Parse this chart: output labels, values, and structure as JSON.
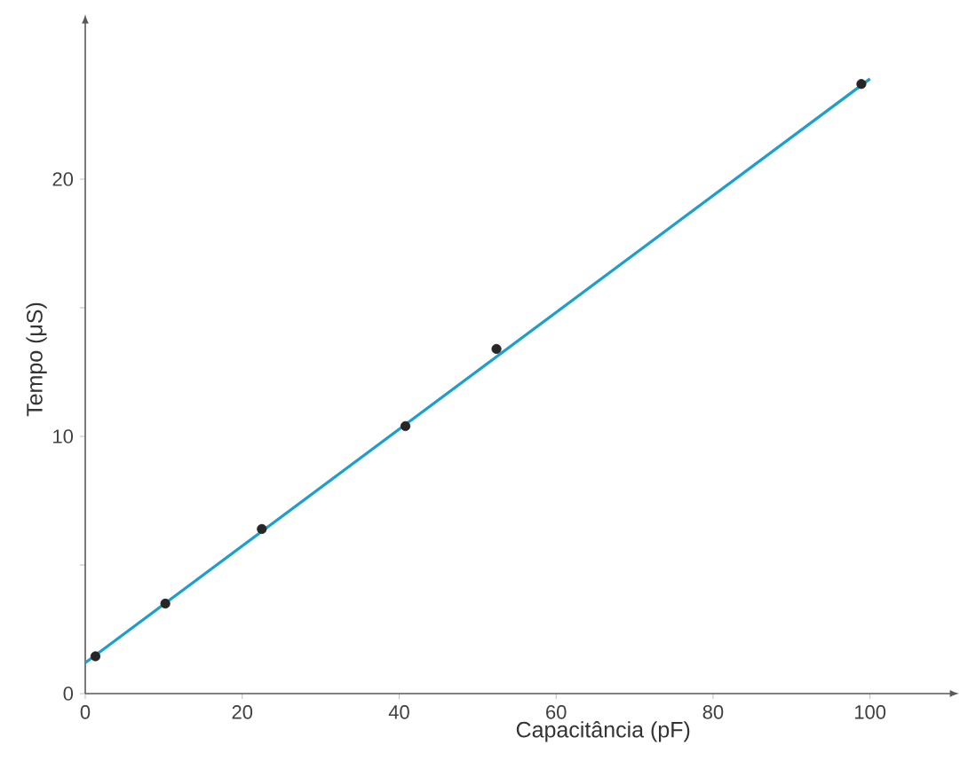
{
  "chart_data": {
    "type": "scatter",
    "xlabel": "Capacitância (pF)",
    "ylabel": "Tempo (μS)",
    "xlim": [
      0,
      110
    ],
    "ylim": [
      0,
      26
    ],
    "xticks": [
      0,
      20,
      40,
      60,
      80,
      100
    ],
    "yticks": [
      0,
      {
        "value": 5,
        "label": null
      },
      10,
      {
        "value": 15,
        "label": null
      },
      20
    ],
    "grid": false,
    "series": [
      {
        "marker": "circle",
        "color": "#262626",
        "x": [
          1.3,
          10.2,
          22.5,
          40.8,
          52.4,
          98.9
        ],
        "values": [
          1.45,
          3.5,
          6.4,
          10.4,
          13.4,
          23.7
        ]
      },
      {
        "type": "line",
        "color": "#1a9fd0",
        "x": [
          0,
          100
        ],
        "values": [
          1.2,
          23.9
        ]
      }
    ]
  }
}
